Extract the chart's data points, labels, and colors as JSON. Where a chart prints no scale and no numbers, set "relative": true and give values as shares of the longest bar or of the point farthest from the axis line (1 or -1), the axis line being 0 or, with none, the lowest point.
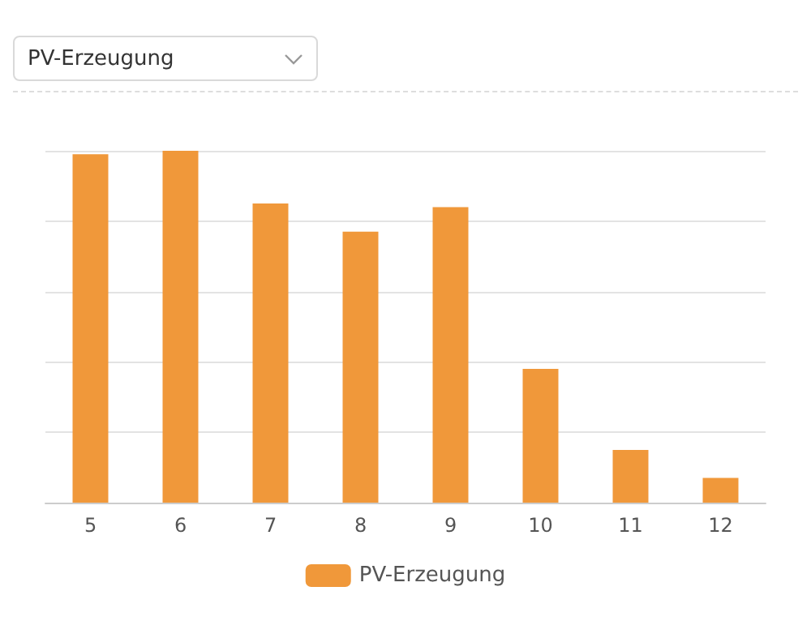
{
  "chart_data": {
    "type": "bar",
    "title": "PV-Erzeugung",
    "categories": [
      "5",
      "6",
      "7",
      "8",
      "9",
      "10",
      "11",
      "12"
    ],
    "series": [
      {
        "name": "PV-Erzeugung",
        "color": "#f0983a",
        "values": [
          0.99,
          1,
          0.85,
          0.77,
          0.84,
          0.38,
          0.15,
          0.07
        ]
      }
    ],
    "relative": true,
    "grid": "y",
    "legend": "bottom"
  }
}
